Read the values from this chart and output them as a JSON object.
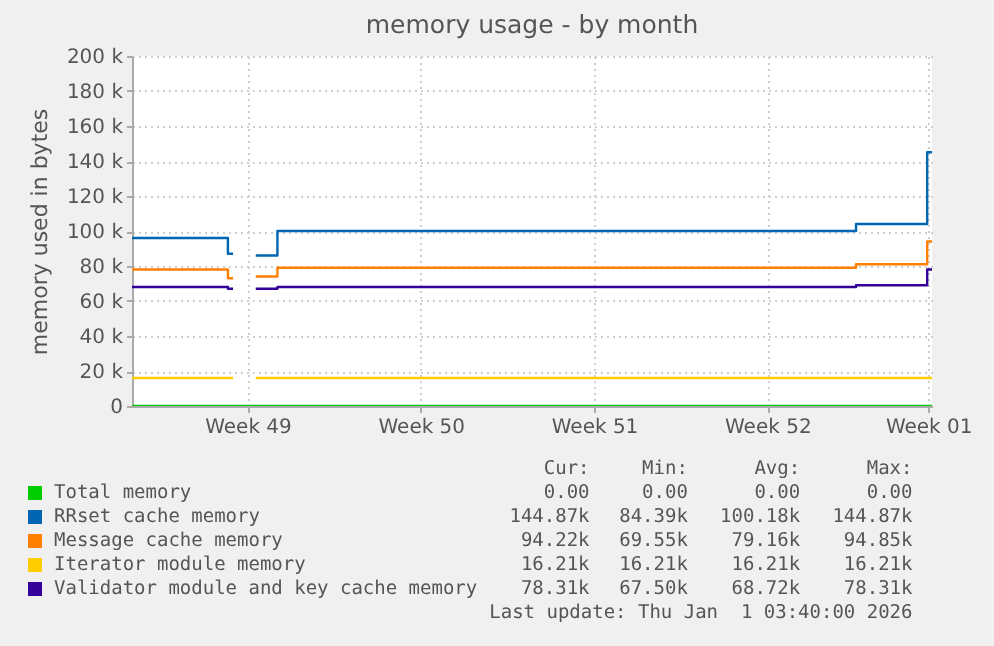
{
  "chart_data": {
    "type": "step",
    "title": "memory usage - by month",
    "ylabel": "memory used in bytes",
    "x": [
      "2025-11-29T20:00",
      "2025-12-03T17:00",
      "2025-12-03T22:00",
      "2025-12-04T00:00",
      "2025-12-04T20:00",
      "2025-12-05T17:00",
      "2025-12-29T02:00",
      "2025-12-31T23:00",
      "2026-01-01T03:40"
    ],
    "series": [
      {
        "name": "Total memory",
        "color": "#00cc00",
        "values": [
          0,
          0,
          0,
          0,
          0,
          0,
          0,
          0,
          0
        ]
      },
      {
        "name": "RRset cache memory",
        "color": "#0066b3",
        "values": [
          96000,
          87000,
          87000,
          null,
          86000,
          100000,
          104000,
          145000,
          145000
        ]
      },
      {
        "name": "Message cache memory",
        "color": "#ff8000",
        "values": [
          78000,
          73000,
          73000,
          null,
          74000,
          79000,
          81000,
          94000,
          94000
        ]
      },
      {
        "name": "Iterator module memory",
        "color": "#ffcc00",
        "values": [
          16000,
          16000,
          16000,
          null,
          16000,
          16000,
          16000,
          16000,
          16000
        ]
      },
      {
        "name": "Validator module and key cache memory",
        "color": "#330099",
        "values": [
          68000,
          67000,
          67000,
          null,
          67000,
          68000,
          69000,
          78000,
          78000
        ]
      }
    ],
    "xlim": [
      "2025-11-29T20:00",
      "2026-01-01T03:40"
    ],
    "xticks": [
      {
        "value": "2025-12-04T12:00",
        "label": "Week 49"
      },
      {
        "value": "2025-12-11T12:00",
        "label": "Week 50"
      },
      {
        "value": "2025-12-18T12:00",
        "label": "Week 51"
      },
      {
        "value": "2025-12-25T12:00",
        "label": "Week 52"
      },
      {
        "value": "2026-01-01T00:00",
        "label": "Week 01"
      }
    ],
    "ylim": [
      0,
      200000
    ],
    "yticks": [
      {
        "value": 0,
        "label": "0"
      },
      {
        "value": 20000,
        "label": "20 k"
      },
      {
        "value": 40000,
        "label": "40 k"
      },
      {
        "value": 60000,
        "label": "60 k"
      },
      {
        "value": 80000,
        "label": "80 k"
      },
      {
        "value": 100000,
        "label": "100 k"
      },
      {
        "value": 120000,
        "label": "120 k"
      },
      {
        "value": 140000,
        "label": "140 k"
      },
      {
        "value": 160000,
        "label": "160 k"
      },
      {
        "value": 180000,
        "label": "180 k"
      },
      {
        "value": 200000,
        "label": "200 k"
      }
    ],
    "grid": true,
    "legend": "bottom",
    "annotations": [
      "Cur:",
      "Min:",
      "Avg:",
      "Max:",
      "0.00",
      "0.00",
      "0.00",
      "0.00",
      "144.87k",
      "84.39k",
      "100.18k",
      "144.87k",
      "94.22k",
      "69.55k",
      "79.16k",
      "94.85k",
      "16.21k",
      "16.21k",
      "16.21k",
      "16.21k",
      "78.31k",
      "67.50k",
      "68.72k",
      "78.31k",
      "Last update: Thu Jan  1 03:40:00 2026"
    ]
  }
}
